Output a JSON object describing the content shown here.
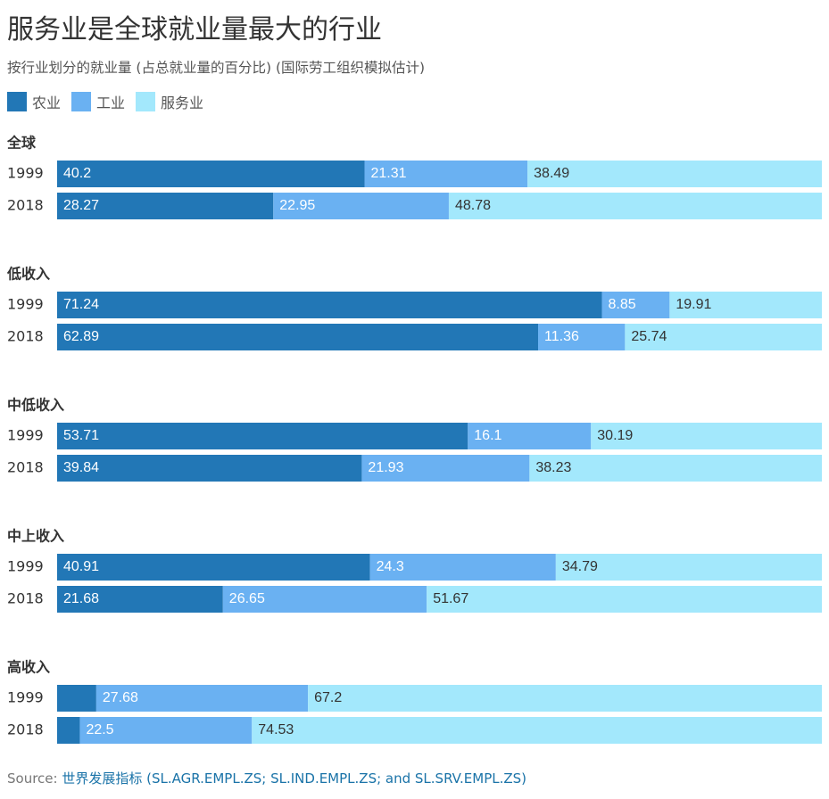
{
  "chart_data": {
    "type": "bar",
    "orientation": "horizontal",
    "stacked": true,
    "title": "服务业是全球就业量最大的行业",
    "subtitle": "按行业划分的就业量 (占总就业量的百分比) (国际劳工组织模拟估计)",
    "legend": [
      {
        "name": "农业",
        "color": "#2277b6"
      },
      {
        "name": "工业",
        "color": "#6ab1f2"
      },
      {
        "name": "服务业",
        "color": "#a3e8fc"
      }
    ],
    "legend_placement": "top-left",
    "xlim": [
      0,
      100
    ],
    "grid": false,
    "groups": [
      {
        "name": "全球",
        "rows": [
          {
            "year": "1999",
            "values": [
              40.2,
              21.31,
              38.49
            ]
          },
          {
            "year": "2018",
            "values": [
              28.27,
              22.95,
              48.78
            ]
          }
        ]
      },
      {
        "name": "低收入",
        "rows": [
          {
            "year": "1999",
            "values": [
              71.24,
              8.85,
              19.91
            ]
          },
          {
            "year": "2018",
            "values": [
              62.89,
              11.36,
              25.74
            ]
          }
        ]
      },
      {
        "name": "中低收入",
        "rows": [
          {
            "year": "1999",
            "values": [
              53.71,
              16.1,
              30.19
            ]
          },
          {
            "year": "2018",
            "values": [
              39.84,
              21.93,
              38.23
            ]
          }
        ]
      },
      {
        "name": "中上收入",
        "rows": [
          {
            "year": "1999",
            "values": [
              40.91,
              24.3,
              34.79
            ]
          },
          {
            "year": "2018",
            "values": [
              21.68,
              26.65,
              51.67
            ]
          }
        ]
      },
      {
        "name": "高收入",
        "rows": [
          {
            "year": "1999",
            "values": [
              5.12,
              27.68,
              67.2
            ]
          },
          {
            "year": "2018",
            "values": [
              2.97,
              22.5,
              74.53
            ]
          }
        ]
      }
    ],
    "hidden_labels": [
      [
        4,
        0,
        0
      ],
      [
        4,
        1,
        0
      ]
    ],
    "label_colors": [
      "#ffffff",
      "#ffffff",
      "#333333"
    ]
  },
  "source": {
    "prefix": "Source: ",
    "link_text": "世界发展指标 (SL.AGR.EMPL.ZS; SL.IND.EMPL.ZS; and SL.SRV.EMPL.ZS)"
  }
}
